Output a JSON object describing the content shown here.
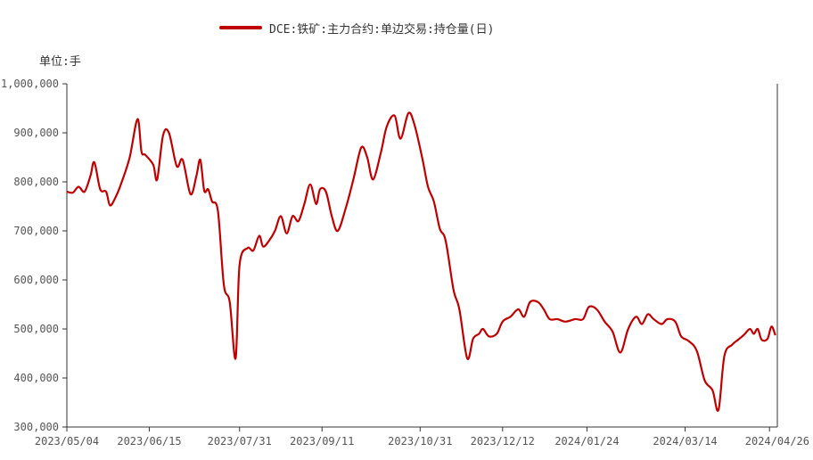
{
  "chart_data": {
    "type": "line",
    "series": [
      {
        "name": "DCE:铁矿:主力合约:单边交易:持仓量(日)",
        "color": "#c00000",
        "points": [
          [
            "2023/05/04",
            780000
          ],
          [
            "2023/05/07",
            778000
          ],
          [
            "2023/05/10",
            790000
          ],
          [
            "2023/05/13",
            780000
          ],
          [
            "2023/05/16",
            812000
          ],
          [
            "2023/05/18",
            840000
          ],
          [
            "2023/05/21",
            785000
          ],
          [
            "2023/05/24",
            780000
          ],
          [
            "2023/05/26",
            752000
          ],
          [
            "2023/05/29",
            770000
          ],
          [
            "2023/06/01",
            800000
          ],
          [
            "2023/06/05",
            850000
          ],
          [
            "2023/06/09",
            928000
          ],
          [
            "2023/06/11",
            862000
          ],
          [
            "2023/06/13",
            855000
          ],
          [
            "2023/06/17",
            835000
          ],
          [
            "2023/06/19",
            805000
          ],
          [
            "2023/06/22",
            895000
          ],
          [
            "2023/06/25",
            900000
          ],
          [
            "2023/06/29",
            832000
          ],
          [
            "2023/07/02",
            845000
          ],
          [
            "2023/07/06",
            775000
          ],
          [
            "2023/07/09",
            812000
          ],
          [
            "2023/07/11",
            845000
          ],
          [
            "2023/07/13",
            782000
          ],
          [
            "2023/07/15",
            785000
          ],
          [
            "2023/07/17",
            760000
          ],
          [
            "2023/07/20",
            740000
          ],
          [
            "2023/07/23",
            590000
          ],
          [
            "2023/07/26",
            555000
          ],
          [
            "2023/07/29",
            440000
          ],
          [
            "2023/07/31",
            630000
          ],
          [
            "2023/08/04",
            665000
          ],
          [
            "2023/08/07",
            660000
          ],
          [
            "2023/08/10",
            690000
          ],
          [
            "2023/08/12",
            668000
          ],
          [
            "2023/08/15",
            680000
          ],
          [
            "2023/08/18",
            700000
          ],
          [
            "2023/08/21",
            730000
          ],
          [
            "2023/08/24",
            695000
          ],
          [
            "2023/08/27",
            730000
          ],
          [
            "2023/08/30",
            720000
          ],
          [
            "2023/09/02",
            755000
          ],
          [
            "2023/09/05",
            795000
          ],
          [
            "2023/09/08",
            755000
          ],
          [
            "2023/09/10",
            785000
          ],
          [
            "2023/09/13",
            780000
          ],
          [
            "2023/09/16",
            730000
          ],
          [
            "2023/09/19",
            700000
          ],
          [
            "2023/09/23",
            745000
          ],
          [
            "2023/09/27",
            805000
          ],
          [
            "2023/10/01",
            870000
          ],
          [
            "2023/10/04",
            850000
          ],
          [
            "2023/10/07",
            805000
          ],
          [
            "2023/10/11",
            860000
          ],
          [
            "2023/10/14",
            913000
          ],
          [
            "2023/10/18",
            935000
          ],
          [
            "2023/10/21",
            888000
          ],
          [
            "2023/10/25",
            940000
          ],
          [
            "2023/10/28",
            918000
          ],
          [
            "2023/11/01",
            850000
          ],
          [
            "2023/11/04",
            790000
          ],
          [
            "2023/11/07",
            760000
          ],
          [
            "2023/11/10",
            705000
          ],
          [
            "2023/11/13",
            680000
          ],
          [
            "2023/11/17",
            580000
          ],
          [
            "2023/11/20",
            540000
          ],
          [
            "2023/11/24",
            440000
          ],
          [
            "2023/11/27",
            480000
          ],
          [
            "2023/11/30",
            490000
          ],
          [
            "2023/12/02",
            500000
          ],
          [
            "2023/12/05",
            485000
          ],
          [
            "2023/12/09",
            490000
          ],
          [
            "2023/12/12",
            515000
          ],
          [
            "2023/12/16",
            525000
          ],
          [
            "2023/12/20",
            540000
          ],
          [
            "2023/12/23",
            525000
          ],
          [
            "2023/12/26",
            555000
          ],
          [
            "2023/12/30",
            555000
          ],
          [
            "2024/01/02",
            540000
          ],
          [
            "2024/01/05",
            520000
          ],
          [
            "2024/01/09",
            520000
          ],
          [
            "2024/01/13",
            515000
          ],
          [
            "2024/01/18",
            520000
          ],
          [
            "2024/01/22",
            520000
          ],
          [
            "2024/01/25",
            545000
          ],
          [
            "2024/01/29",
            540000
          ],
          [
            "2024/02/02",
            515000
          ],
          [
            "2024/02/06",
            495000
          ],
          [
            "2024/02/10",
            452000
          ],
          [
            "2024/02/14",
            500000
          ],
          [
            "2024/02/18",
            525000
          ],
          [
            "2024/02/21",
            510000
          ],
          [
            "2024/02/24",
            530000
          ],
          [
            "2024/02/27",
            520000
          ],
          [
            "2024/03/02",
            510000
          ],
          [
            "2024/03/05",
            520000
          ],
          [
            "2024/03/09",
            515000
          ],
          [
            "2024/03/12",
            485000
          ],
          [
            "2024/03/16",
            475000
          ],
          [
            "2024/03/20",
            455000
          ],
          [
            "2024/03/24",
            395000
          ],
          [
            "2024/03/28",
            375000
          ],
          [
            "2024/03/31",
            335000
          ],
          [
            "2024/04/03",
            445000
          ],
          [
            "2024/04/07",
            468000
          ],
          [
            "2024/04/10",
            478000
          ],
          [
            "2024/04/13",
            488000
          ],
          [
            "2024/04/16",
            500000
          ],
          [
            "2024/04/18",
            490000
          ],
          [
            "2024/04/20",
            500000
          ],
          [
            "2024/04/22",
            478000
          ],
          [
            "2024/04/25",
            480000
          ],
          [
            "2024/04/27",
            505000
          ],
          [
            "2024/04/29",
            487000
          ]
        ]
      }
    ],
    "x_ticks": [
      "2023/05/04",
      "2023/06/15",
      "2023/07/31",
      "2023/09/11",
      "2023/10/31",
      "2023/12/12",
      "2024/01/24",
      "2024/03/14",
      "2024/04/26"
    ],
    "y_ticks": [
      300000,
      400000,
      500000,
      600000,
      700000,
      800000,
      900000,
      1000000
    ],
    "y_tick_labels": [
      "300,000",
      "400,000",
      "500,000",
      "600,000",
      "700,000",
      "800,000",
      "900,000",
      "1,000,000"
    ],
    "ylim": [
      300000,
      1000000
    ],
    "xlim": [
      "2023/05/04",
      "2024/04/30"
    ],
    "grid": false,
    "legend": "top-center",
    "unit_label": "单位:手"
  }
}
